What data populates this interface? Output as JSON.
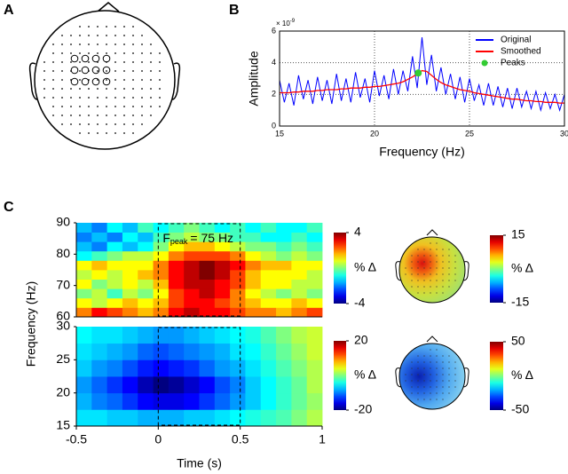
{
  "panel_labels": [
    "A",
    "B",
    "C"
  ],
  "chart_data": [
    {
      "type": "line",
      "y_multiplier": {
        "base": "× 10",
        "exponent": "-9"
      },
      "xlabel": "Frequency (Hz)",
      "ylabel": "Amplitude",
      "xlim": [
        15,
        30
      ],
      "xticks": [
        15,
        20,
        25,
        30
      ],
      "ylim": [
        0,
        6
      ],
      "yticks": [
        0,
        2,
        4,
        6
      ],
      "grid": true,
      "legend": "upper right",
      "x": [
        15,
        15.25,
        15.5,
        15.75,
        16,
        16.25,
        16.5,
        16.75,
        17,
        17.25,
        17.5,
        17.75,
        18,
        18.25,
        18.5,
        18.75,
        19,
        19.25,
        19.5,
        19.75,
        20,
        20.25,
        20.5,
        20.75,
        21,
        21.25,
        21.5,
        21.75,
        22,
        22.25,
        22.5,
        22.75,
        23,
        23.25,
        23.5,
        23.75,
        24,
        24.25,
        24.5,
        24.75,
        25,
        25.25,
        25.5,
        25.75,
        26,
        26.25,
        26.5,
        26.75,
        27,
        27.25,
        27.5,
        27.75,
        28,
        28.25,
        28.5,
        28.75,
        29,
        29.25,
        29.5,
        29.75,
        30
      ],
      "series": [
        {
          "name": "Original",
          "color": "#0000ff",
          "values": [
            2.9,
            1.5,
            2.7,
            1.3,
            3.2,
            1.7,
            2.9,
            1.4,
            3.1,
            1.6,
            2.9,
            1.4,
            3.3,
            1.6,
            3.0,
            1.5,
            3.4,
            1.8,
            3.0,
            1.5,
            3.5,
            1.9,
            3.2,
            1.7,
            3.6,
            2.0,
            3.5,
            2.2,
            4.4,
            2.4,
            5.6,
            2.6,
            4.5,
            2.2,
            3.7,
            2.0,
            3.3,
            1.7,
            3.1,
            1.5,
            3.0,
            1.6,
            2.6,
            1.3,
            2.7,
            1.3,
            2.5,
            1.2,
            2.4,
            1.1,
            2.4,
            1.2,
            2.2,
            1.1,
            2.2,
            1.0,
            2.1,
            1.1,
            2.0,
            1.0,
            2.0
          ]
        },
        {
          "name": "Smoothed",
          "color": "#ff0000",
          "values": [
            2.1,
            2.1,
            2.1,
            2.15,
            2.15,
            2.2,
            2.2,
            2.2,
            2.25,
            2.25,
            2.3,
            2.3,
            2.3,
            2.35,
            2.35,
            2.4,
            2.4,
            2.4,
            2.45,
            2.45,
            2.5,
            2.5,
            2.55,
            2.6,
            2.65,
            2.7,
            2.8,
            2.95,
            3.1,
            3.3,
            3.5,
            3.45,
            3.2,
            2.95,
            2.75,
            2.6,
            2.5,
            2.4,
            2.3,
            2.25,
            2.2,
            2.1,
            2.05,
            2.0,
            1.95,
            1.9,
            1.85,
            1.8,
            1.75,
            1.7,
            1.7,
            1.65,
            1.6,
            1.6,
            1.55,
            1.55,
            1.5,
            1.5,
            1.5,
            1.45,
            1.45
          ]
        },
        {
          "name": "Peaks",
          "color": "#33cc33",
          "type": "scatter",
          "x": [
            22.3
          ],
          "values": [
            3.35
          ]
        }
      ]
    },
    {
      "type": "heatmap",
      "ylabel": "Frequency (Hz)",
      "annotation": {
        "main": "F",
        "sub": "peak",
        "tail": "= 75 Hz"
      },
      "xlim": [
        -0.5,
        1
      ],
      "ylim": [
        60,
        90
      ],
      "yticks": [
        60,
        70,
        80,
        90
      ],
      "x_edges": [
        -0.5,
        -0.40625,
        -0.3125,
        -0.21875,
        -0.125,
        -0.03125,
        0.0625,
        0.15625,
        0.25,
        0.34375,
        0.4375,
        0.53125,
        0.625,
        0.71875,
        0.8125,
        0.90625,
        1
      ],
      "y_edges": [
        60,
        63,
        66,
        69,
        72,
        75,
        78,
        81,
        84,
        87,
        90
      ],
      "highlight_x": [
        0,
        0.5
      ],
      "zlim": [
        -4,
        4
      ],
      "colorbar": {
        "label": "% Δ",
        "ticks": [
          -4,
          4
        ]
      },
      "z": [
        [
          2,
          3,
          2.5,
          2,
          1.5,
          2,
          3,
          3.5,
          3,
          3,
          2.5,
          2,
          2,
          1.5,
          2,
          2.5
        ],
        [
          1,
          0.5,
          1,
          1.5,
          1,
          1.5,
          2.5,
          3,
          3,
          2.5,
          2,
          1.5,
          1,
          1,
          1.5,
          1
        ],
        [
          0,
          0.5,
          -0.5,
          0.5,
          0,
          1,
          2.5,
          3,
          3.5,
          3,
          2,
          1,
          0.5,
          0,
          0.5,
          0
        ],
        [
          1,
          0,
          0.5,
          1,
          0.5,
          1.5,
          3,
          3.5,
          3.5,
          3,
          2.5,
          1.5,
          1,
          1,
          0.5,
          0.5
        ],
        [
          0.5,
          1,
          0.5,
          1,
          1.5,
          2,
          3,
          3.5,
          4,
          3.5,
          2.5,
          1.5,
          1,
          1,
          1,
          0.5
        ],
        [
          1,
          1.5,
          1,
          1,
          1,
          2,
          3,
          3.5,
          4,
          3.5,
          3,
          2,
          1.5,
          1.5,
          1,
          1
        ],
        [
          -1,
          -0.5,
          0,
          0.5,
          0.5,
          1,
          2,
          2.5,
          2.5,
          2.5,
          2,
          1,
          0.5,
          0,
          0.5,
          0
        ],
        [
          -1.5,
          -2,
          -1,
          -1.5,
          -1,
          0,
          1,
          1.5,
          1.5,
          1,
          0.5,
          0,
          0,
          -0.5,
          0,
          -0.5
        ],
        [
          -2,
          -1.5,
          -2,
          -1,
          -1.5,
          -0.5,
          0,
          0.5,
          0,
          0,
          -0.5,
          -0.5,
          -1,
          -1,
          -0.5,
          -1
        ],
        [
          -1.5,
          -2,
          -1,
          -1.5,
          -0.5,
          -1,
          -0.5,
          0,
          -0.5,
          -1,
          -0.5,
          -1,
          -0.5,
          -1,
          -1,
          -0.5
        ]
      ]
    },
    {
      "type": "heatmap",
      "xlabel": "Time (s)",
      "xlim": [
        -0.5,
        1
      ],
      "xticks": [
        -0.5,
        0,
        0.5,
        1
      ],
      "ylim": [
        15,
        30
      ],
      "yticks": [
        15,
        20,
        25,
        30
      ],
      "x_edges": [
        -0.5,
        -0.40625,
        -0.3125,
        -0.21875,
        -0.125,
        -0.03125,
        0.0625,
        0.15625,
        0.25,
        0.34375,
        0.4375,
        0.53125,
        0.625,
        0.71875,
        0.8125,
        0.90625,
        1
      ],
      "y_edges": [
        15,
        17.5,
        20,
        22.5,
        25,
        27.5,
        30
      ],
      "highlight_x": [
        0,
        0.5
      ],
      "zlim": [
        -20,
        20
      ],
      "colorbar": {
        "label": "% Δ",
        "ticks": [
          -20,
          20
        ]
      },
      "z": [
        [
          -6,
          -6,
          -7,
          -7,
          -8,
          -8,
          -8,
          -7,
          -7,
          -6,
          -5,
          -4,
          -3,
          -2,
          0,
          2
        ],
        [
          -8,
          -10,
          -11,
          -13,
          -15,
          -16,
          -16,
          -15,
          -13,
          -11,
          -9,
          -7,
          -5,
          -3,
          -1,
          1
        ],
        [
          -9,
          -11,
          -13,
          -15,
          -18,
          -20,
          -19,
          -17,
          -15,
          -12,
          -10,
          -7,
          -5,
          -3,
          -1,
          2
        ],
        [
          -7,
          -9,
          -10,
          -12,
          -14,
          -15,
          -14,
          -13,
          -11,
          -9,
          -8,
          -6,
          -4,
          -2,
          0,
          2
        ],
        [
          -6,
          -7,
          -8,
          -9,
          -11,
          -12,
          -11,
          -10,
          -9,
          -8,
          -6,
          -5,
          -3,
          -1,
          1,
          3
        ],
        [
          -5,
          -6,
          -6,
          -7,
          -8,
          -9,
          -9,
          -8,
          -7,
          -6,
          -5,
          -4,
          -2,
          0,
          2,
          3
        ]
      ]
    },
    {
      "type": "topomap",
      "zlim": [
        -15,
        15
      ],
      "colorbar": {
        "label": "% Δ",
        "ticks": [
          -15,
          15
        ]
      }
    },
    {
      "type": "topomap",
      "zlim": [
        -50,
        50
      ],
      "colorbar": {
        "label": "% Δ",
        "ticks": [
          -50,
          50
        ]
      }
    }
  ]
}
